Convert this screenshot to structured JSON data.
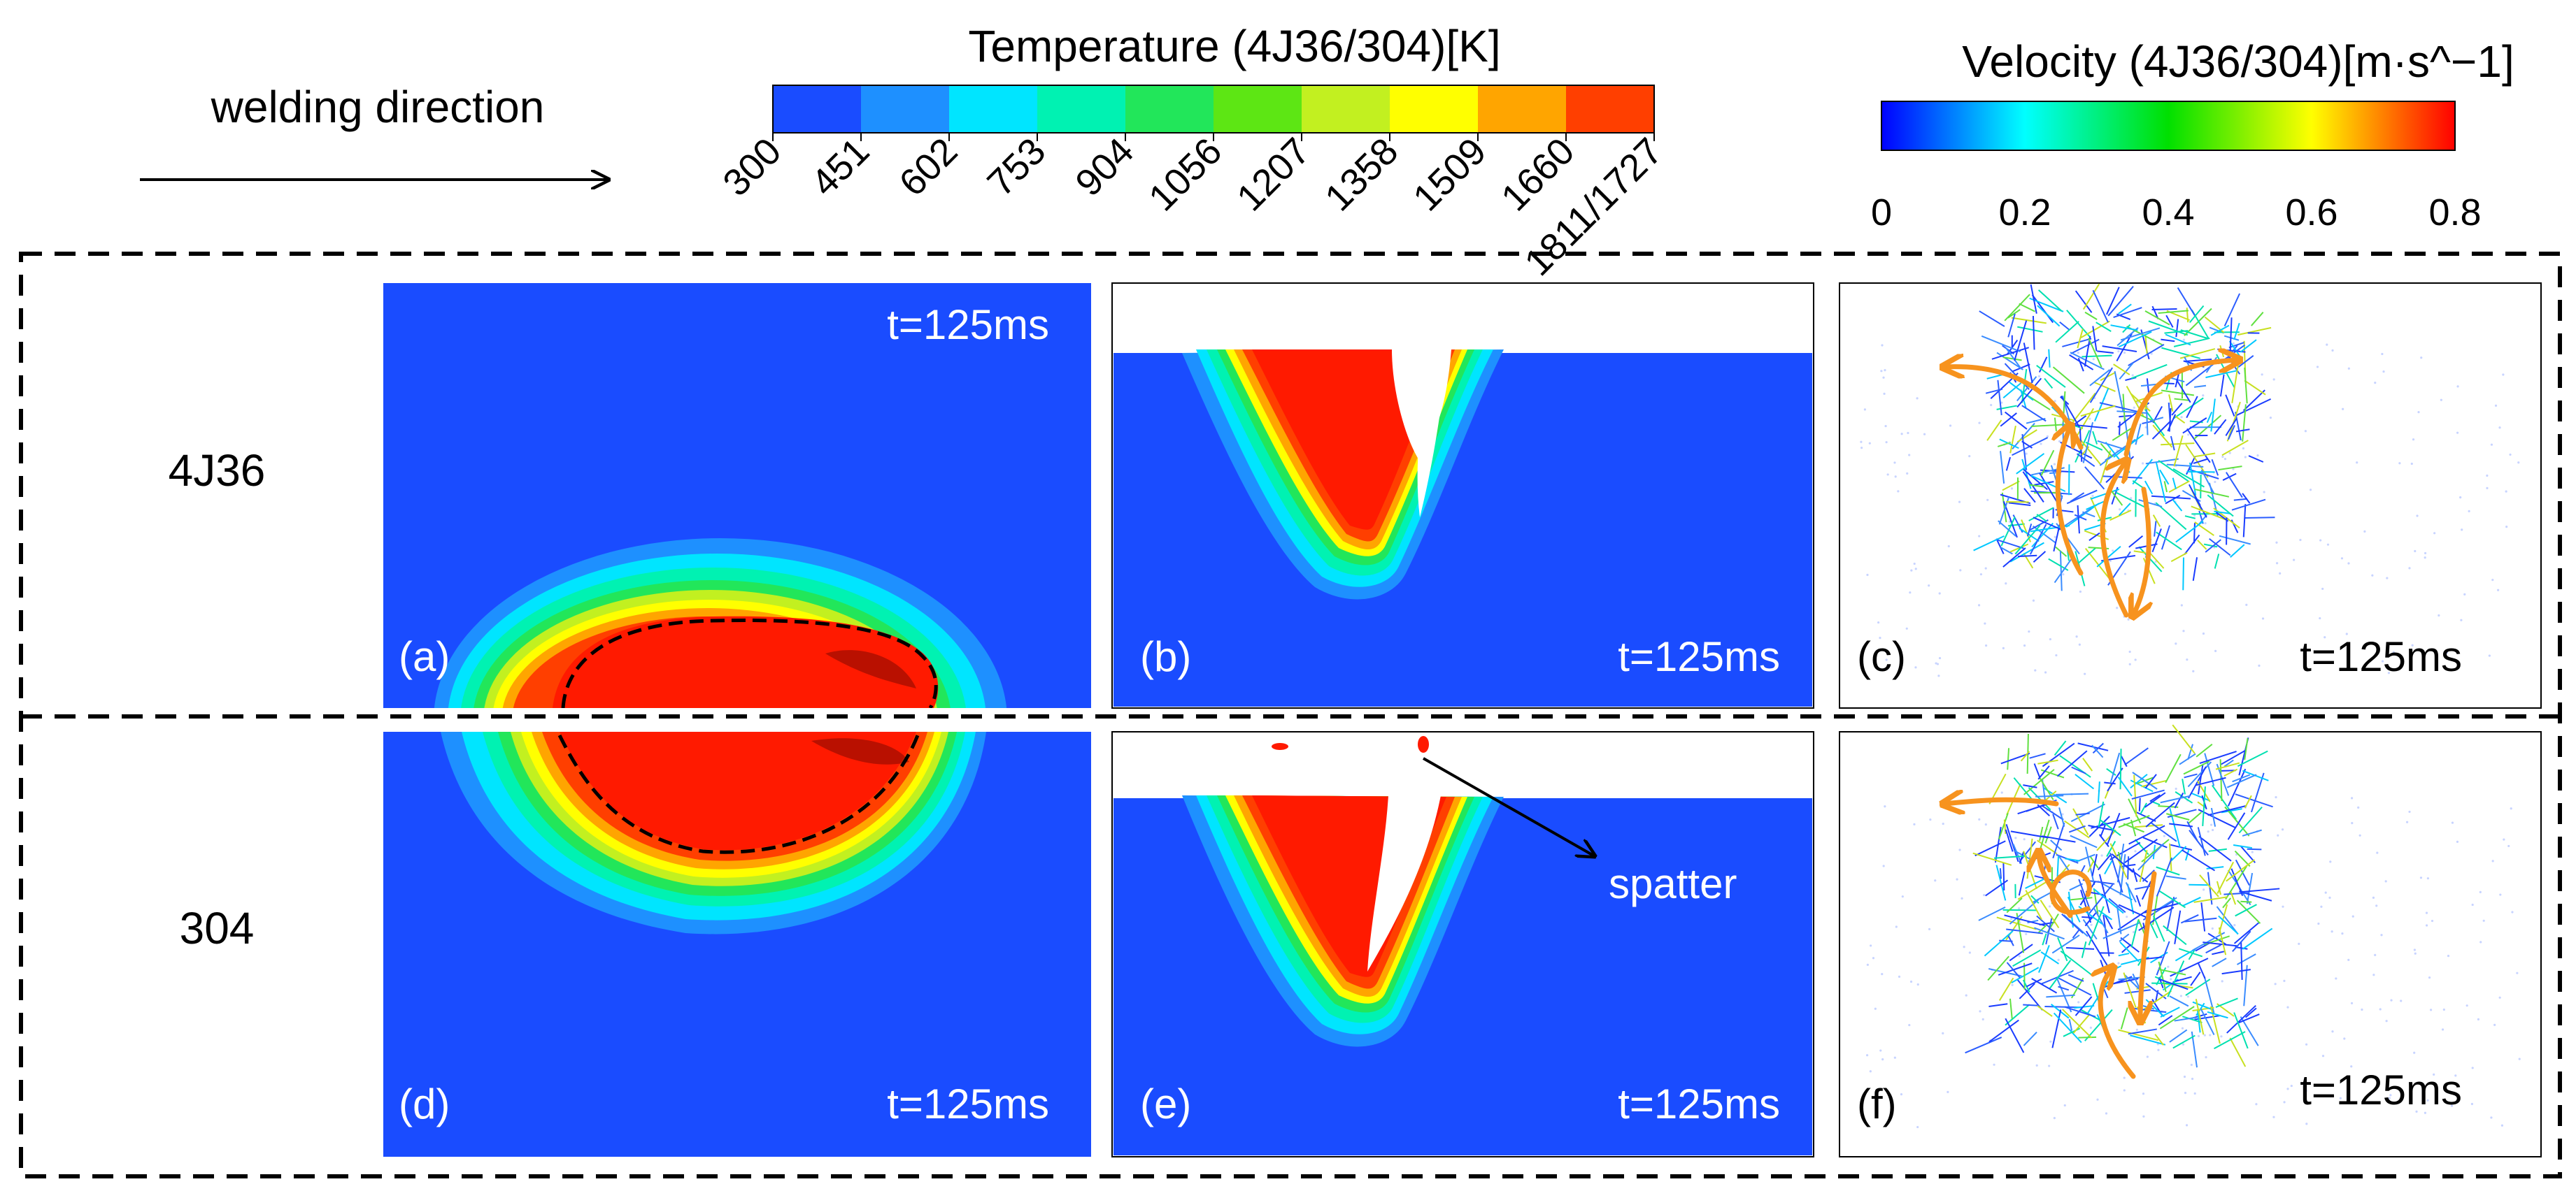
{
  "header": {
    "direction_label": "welding direction"
  },
  "temperature_legend": {
    "title": "Temperature (4J36/304)[K]",
    "ticks": [
      "300",
      "451",
      "602",
      "753",
      "904",
      "1056",
      "1207",
      "1358",
      "1509",
      "1660",
      "1811/1727"
    ],
    "colors": [
      "#1a4cff",
      "#1e90ff",
      "#00e5ff",
      "#00f2b2",
      "#22e65a",
      "#5de614",
      "#c2f020",
      "#ffff00",
      "#ffa500",
      "#ff3f00"
    ]
  },
  "velocity_legend": {
    "title": "Velocity (4J36/304)[m·s^−1]",
    "ticks": [
      "0",
      "0.2",
      "0.4",
      "0.6",
      "0.8"
    ],
    "range": [
      0,
      0.8
    ]
  },
  "rows": [
    {
      "label": "4J36"
    },
    {
      "label": "304"
    }
  ],
  "panels": [
    {
      "tag": "(a)",
      "time": "t=125ms"
    },
    {
      "tag": "(b)",
      "time": "t=125ms"
    },
    {
      "tag": "(c)",
      "time": "t=125ms"
    },
    {
      "tag": "(d)",
      "time": "t=125ms"
    },
    {
      "tag": "(e)",
      "time": "t=125ms"
    },
    {
      "tag": "(f)",
      "time": "t=125ms"
    }
  ],
  "annotations": {
    "spatter_label": "spatter"
  },
  "colors": {
    "background_blue": "#1a4cff",
    "molten_red": "#ff1a00",
    "flow_arrow_orange": "#f7931e",
    "vector_blue": "#1a3cff"
  }
}
